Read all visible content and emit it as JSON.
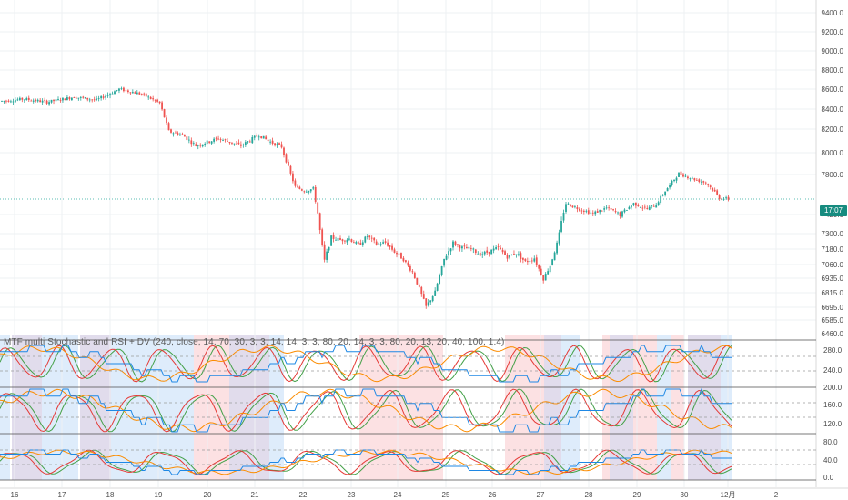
{
  "indicator": {
    "title": "MTF multi Stochastic and  RSI + DV (240, close, 14, 70, 30, 3, 3, 14, 14, 3, 3, 80, 20, 14, 3, 3, 80, 20, 13, 20, 40, 100, 1.4)"
  },
  "price_badge": {
    "price": "7559.5",
    "countdown": "17:07",
    "color": "#26a69a"
  },
  "colors": {
    "up": "#26a69a",
    "down": "#ef5350",
    "grid": "#eef0f3",
    "stoch_k": "#43a047",
    "stoch_d": "#e53935",
    "rsi": "#fb8c00",
    "dv": "#1e88e5",
    "band_red": "#f9c9cc",
    "band_blue": "#c3ddf7",
    "band_purple": "#c8bfdc"
  },
  "chart_data": [
    {
      "type": "candlestick",
      "name": "price",
      "y_ticks": [
        "9400.0",
        "9200.0",
        "9000.0",
        "8800.0",
        "8600.0",
        "8400.0",
        "8200.0",
        "8000.0",
        "7800.0",
        "7420.0",
        "7300.0",
        "7180.0",
        "7060.0",
        "6935.0",
        "6815.0",
        "6695.0",
        "6585.0",
        "6460.0"
      ],
      "x_ticks": [
        "16",
        "17",
        "18",
        "19",
        "20",
        "21",
        "22",
        "23",
        "24",
        "25",
        "26",
        "27",
        "28",
        "29",
        "30",
        "12月",
        "2"
      ],
      "last_price": 7559.5,
      "path": [
        [
          0,
          8480
        ],
        [
          10,
          8500
        ],
        [
          20,
          8470
        ],
        [
          32,
          8520
        ],
        [
          42,
          8490
        ],
        [
          52,
          8600
        ],
        [
          62,
          8550
        ],
        [
          70,
          8460
        ],
        [
          74,
          8180
        ],
        [
          80,
          8150
        ],
        [
          86,
          8060
        ],
        [
          96,
          8120
        ],
        [
          106,
          8060
        ],
        [
          114,
          8150
        ],
        [
          118,
          8100
        ],
        [
          124,
          8050
        ],
        [
          130,
          7680
        ],
        [
          134,
          7640
        ],
        [
          138,
          7660
        ],
        [
          143,
          7090
        ],
        [
          146,
          7270
        ],
        [
          150,
          7250
        ],
        [
          154,
          7260
        ],
        [
          158,
          7210
        ],
        [
          162,
          7280
        ],
        [
          166,
          7220
        ],
        [
          170,
          7230
        ],
        [
          174,
          7160
        ],
        [
          178,
          7100
        ],
        [
          182,
          6990
        ],
        [
          186,
          6800
        ],
        [
          188,
          6700
        ],
        [
          192,
          6820
        ],
        [
          196,
          7100
        ],
        [
          200,
          7230
        ],
        [
          204,
          7190
        ],
        [
          208,
          7180
        ],
        [
          212,
          7140
        ],
        [
          216,
          7160
        ],
        [
          220,
          7190
        ],
        [
          224,
          7120
        ],
        [
          228,
          7150
        ],
        [
          232,
          7080
        ],
        [
          236,
          7110
        ],
        [
          240,
          6930
        ],
        [
          243,
          7050
        ],
        [
          246,
          7220
        ],
        [
          250,
          7520
        ],
        [
          256,
          7470
        ],
        [
          262,
          7430
        ],
        [
          268,
          7480
        ],
        [
          274,
          7420
        ],
        [
          280,
          7520
        ],
        [
          286,
          7470
        ],
        [
          290,
          7510
        ],
        [
          294,
          7640
        ],
        [
          300,
          7810
        ],
        [
          306,
          7760
        ],
        [
          312,
          7720
        ],
        [
          316,
          7630
        ],
        [
          318,
          7570
        ],
        [
          322,
          7559
        ]
      ]
    },
    {
      "type": "line",
      "name": "multi-timeframe stochastic / RSI oscillators",
      "y_ticks": [
        "280.0",
        "240.0",
        "200.0",
        "160.0",
        "120.0",
        "80.0",
        "40.0",
        "0.0"
      ],
      "series": [
        {
          "name": "stoch_k_240"
        },
        {
          "name": "stoch_d_240"
        },
        {
          "name": "rsi_240"
        },
        {
          "name": "dv"
        }
      ]
    }
  ]
}
